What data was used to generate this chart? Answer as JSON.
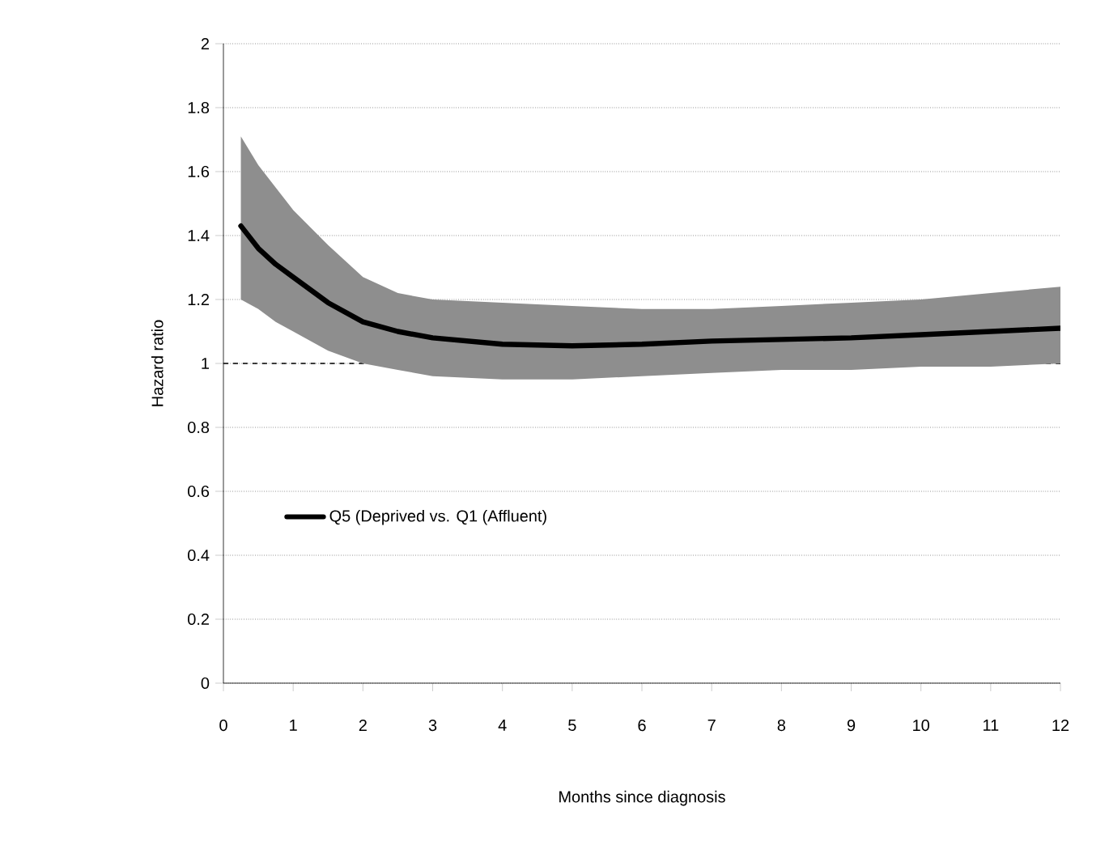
{
  "chart_data": {
    "type": "line",
    "xlabel": "Months since diagnosis",
    "ylabel": "Hazard ratio",
    "x": [
      0.25,
      0.5,
      0.75,
      1,
      1.5,
      2,
      2.5,
      3,
      4,
      5,
      6,
      7,
      8,
      9,
      10,
      11,
      12
    ],
    "series": [
      {
        "name": "Q5 (Deprived vs. Q1 (Affluent)",
        "color": "#000000",
        "values": [
          1.43,
          1.36,
          1.31,
          1.27,
          1.19,
          1.13,
          1.1,
          1.08,
          1.06,
          1.055,
          1.06,
          1.07,
          1.075,
          1.08,
          1.09,
          1.1,
          1.11
        ],
        "lower": [
          1.2,
          1.17,
          1.13,
          1.1,
          1.04,
          1.0,
          0.98,
          0.96,
          0.95,
          0.95,
          0.96,
          0.97,
          0.98,
          0.98,
          0.99,
          0.99,
          1.0
        ],
        "upper": [
          1.71,
          1.62,
          1.55,
          1.48,
          1.37,
          1.27,
          1.22,
          1.2,
          1.19,
          1.18,
          1.17,
          1.17,
          1.18,
          1.19,
          1.2,
          1.22,
          1.24
        ]
      }
    ],
    "ref_lines": [
      {
        "axis": "y",
        "value": 1,
        "color": "#000000",
        "line_style": "dashed"
      }
    ],
    "xlim": [
      0,
      12
    ],
    "ylim": [
      0,
      2
    ],
    "xticks": [
      0,
      1,
      2,
      3,
      4,
      5,
      6,
      7,
      8,
      9,
      10,
      11,
      12
    ],
    "yticks": [
      0,
      0.2,
      0.4,
      0.6,
      0.8,
      1,
      1.2,
      1.4,
      1.6,
      1.8,
      2
    ],
    "grid": "y",
    "legend": "left",
    "line_style": "solid"
  }
}
